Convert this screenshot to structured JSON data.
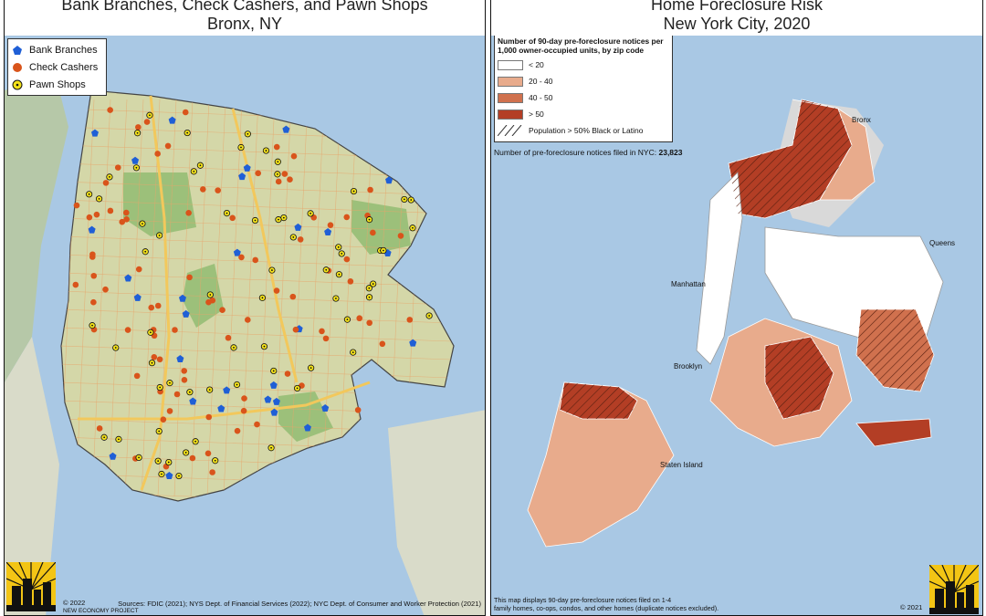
{
  "left_map": {
    "title_line1": "Bank Branches, Check Cashers, and Pawn Shops",
    "title_line2": "Bronx, NY",
    "legend": [
      {
        "label": "Bank Branches",
        "color": "#1f5fd6",
        "symbol": "pentagon-icon"
      },
      {
        "label": "Check Cashers",
        "color": "#d9541b",
        "symbol": "circle-icon"
      },
      {
        "label": "Pawn Shops",
        "color": "#f4e21a",
        "symbol": "dotted-circle-icon"
      }
    ],
    "colors": {
      "land": "#d4d7a8",
      "water": "#a9c8e4",
      "parks": "#9cc07a",
      "roads": "#e8a56b",
      "highway": "#f2c85c"
    },
    "sources": "Sources: FDIC (2021); NYS Dept. of Financial Services (2022); NYC Dept. of Consumer and Worker Protection (2021)",
    "copyright": "© 2022",
    "org": "NEW ECONOMY PROJECT"
  },
  "right_map": {
    "title_line1": "Home Foreclosure Risk",
    "title_line2": "New York City, 2020",
    "legend_title": "Number of 90-day pre-foreclosure notices per 1,000 owner-occupied units, by zip code",
    "legend": [
      {
        "label": "< 20",
        "color": "#ffffff"
      },
      {
        "label": "20 - 40",
        "color": "#e8ab8c"
      },
      {
        "label": "40 - 50",
        "color": "#d0714e"
      },
      {
        "label": "> 50",
        "color": "#b33e25"
      }
    ],
    "hatch_label": "Population > 50% Black or Latino",
    "total_label": "Number of pre-foreclosure notices filed in NYC:",
    "total_value": "23,823",
    "boroughs": [
      "Bronx",
      "Queens",
      "Manhattan",
      "Brooklyn",
      "Staten Island"
    ],
    "footnote_line1": "This map displays 90-day pre-foreclosure notices filed on 1-4",
    "footnote_line2": "family homes, co-ops, condos, and other homes (duplicate notices excluded).",
    "copyright": "© 2021",
    "colors": {
      "water": "#a9c8e4",
      "outside": "#d9d9d9"
    }
  }
}
